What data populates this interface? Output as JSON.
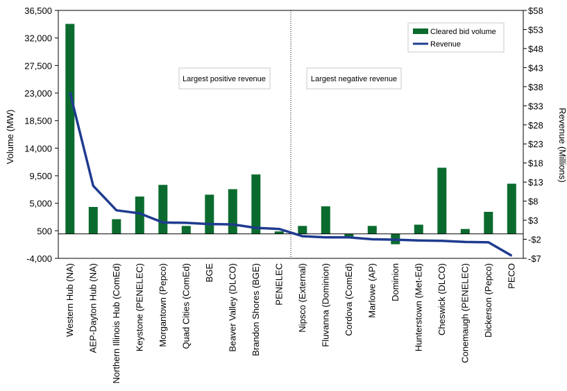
{
  "chart_data": {
    "type": "bar",
    "categories": [
      "Western Hub (NA)",
      "AEP-Dayton Hub (NA)",
      "Northern Illinois Hub (ComEd)",
      "Keystone (PENELEC)",
      "Morgantown (Pepco)",
      "Quad Cities (ComEd)",
      "BGE",
      "Beaver Valley (DLCO)",
      "Brandon Shores (BGE)",
      "PENELEC",
      "Nipsco (External)",
      "Fluvanna (Dominion)",
      "Cordova (ComEd)",
      "Marlowe (AP)",
      "Dominion",
      "Hunterstown (Met-Ed)",
      "Cheswick (DLCO)",
      "Conemaugh (PENELEC)",
      "Dickerson (Pepco)",
      "PECO"
    ],
    "series": [
      {
        "name": "Cleared bid volume",
        "type": "bar",
        "axis": "left",
        "color": "#0b6b2f",
        "values": [
          34300,
          4400,
          2400,
          6100,
          8000,
          1300,
          6400,
          7300,
          9700,
          400,
          1300,
          4500,
          -700,
          1300,
          -1700,
          1500,
          10800,
          800,
          3600,
          8200
        ]
      },
      {
        "name": "Revenue",
        "type": "line",
        "axis": "right",
        "color": "#1f3b8f",
        "values": [
          36.5,
          12.0,
          5.6,
          4.8,
          2.4,
          2.3,
          2.0,
          1.9,
          1.0,
          0.7,
          -1.2,
          -1.5,
          -1.5,
          -2.0,
          -2.1,
          -2.3,
          -2.4,
          -2.7,
          -2.8,
          -6.3
        ]
      }
    ],
    "y_left": {
      "label": "Volume (MW)",
      "range": [
        -4000,
        36500
      ],
      "ticks": [
        -4000,
        500,
        5000,
        9500,
        14000,
        18500,
        23000,
        27500,
        32000,
        36500
      ],
      "tick_labels": [
        "-4,000",
        "500",
        "5,000",
        "9,500",
        "14,000",
        "18,500",
        "23,000",
        "27,500",
        "32,000",
        "36,500"
      ]
    },
    "y_right": {
      "label": "Revenue (Millions)",
      "range": [
        -7,
        58
      ],
      "ticks": [
        -7,
        -2,
        3,
        8,
        13,
        18,
        23,
        28,
        33,
        38,
        43,
        48,
        53,
        58
      ],
      "tick_labels": [
        "-$7",
        "-$2",
        "$3",
        "$8",
        "$13",
        "$18",
        "$23",
        "$28",
        "$33",
        "$38",
        "$43",
        "$48",
        "$53",
        "$58"
      ]
    },
    "divider_after_index": 9,
    "annotations": [
      "Largest positive revenue",
      "Largest negative revenue"
    ],
    "legend": {
      "placement": "top-right",
      "entries": [
        "Cleared bid volume",
        "Revenue"
      ]
    },
    "grid": false
  }
}
